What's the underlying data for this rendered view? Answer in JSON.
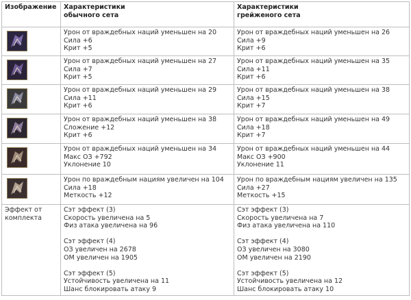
{
  "table": {
    "header": [
      [
        "Изображение"
      ],
      [
        "Характеристики",
        "обычного сета"
      ],
      [
        "Характеристики",
        "грейженого сета"
      ]
    ],
    "rows": [
      {
        "normal": [
          "Урон от враждебных наций уменьшен на 20",
          "Сила +6",
          "Крит +5"
        ],
        "grade": [
          "Урон от враждебных наций уменьшен на 26",
          "Сила +9",
          "Крит +6"
        ]
      },
      {
        "normal": [
          "Урон от враждебных наций уменьшен на 27",
          "Сила +7",
          "Крит +5"
        ],
        "grade": [
          "Урон от враждебных наций уменьшен на 35",
          "Сила +11",
          "Крит +6"
        ]
      },
      {
        "normal": [
          "Урон от враждебных наций уменьшен на 29",
          "Сила +11",
          "Крит +6"
        ],
        "grade": [
          "Урон от враждебных наций уменьшен на 38",
          "Сила +15",
          "Крит +7"
        ]
      },
      {
        "normal": [
          "Урон от враждебных наций уменьшен на 38",
          "Сложение +12",
          "Крит +6"
        ],
        "grade": [
          "Урон от враждебных наций уменьшен на 49",
          "Сила +18",
          "Крит +7"
        ]
      },
      {
        "normal": [
          "Урон от враждебных наций уменьшен на 34",
          "Макс ОЗ +792",
          "Уклонение 10"
        ],
        "grade": [
          "Урон от враждебных наций уменьшен на 44",
          "Макс ОЗ +900",
          "Уклонение 11"
        ]
      },
      {
        "normal": [
          "Урон по враждебным нациям увеличен на 104",
          "Сила +18",
          "Меткость +12"
        ],
        "grade": [
          "Урон по враждебным нациям увеличен на 135",
          "Сила +27",
          "Меткость +15"
        ]
      }
    ],
    "effect": {
      "label": [
        "Эффект от",
        "комплекта"
      ],
      "normal": [
        [
          "Сэт эффект (3)",
          "Скорость увеличена на 5",
          "Физ атака увеличена на 96"
        ],
        [
          "Сэт эффект (4)",
          "ОЗ увеличен на 2678",
          "ОМ увеличен на 1905"
        ],
        [
          "Сэт эффект (5)",
          "Устойчивость увеличена на 11",
          "Шанс блокировать атаку 9"
        ]
      ],
      "grade": [
        [
          "Сэт эффект (3)",
          "Скорость увеличена на 7",
          "Физ атака увеличена на 110"
        ],
        [
          "Сэт эффект (4)",
          "ОЗ увеличен на 3080",
          "ОМ увеличен на 2190"
        ],
        [
          "Сэт эффект (5)",
          "Устойчивость увеличена на 12",
          "Шанс блокировать атаку 10"
        ]
      ]
    }
  }
}
